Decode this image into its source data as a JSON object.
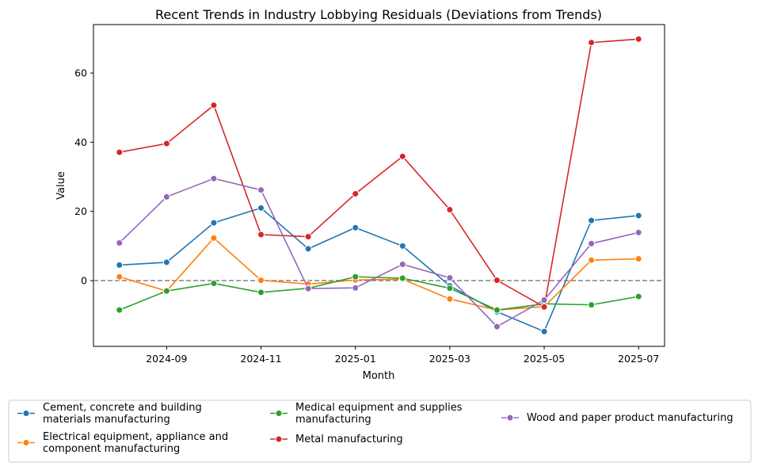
{
  "chart_data": {
    "type": "line",
    "title": "Recent Trends in Industry Lobbying Residuals (Deviations from Trends)",
    "xlabel": "Month",
    "ylabel": "Value",
    "x": [
      "2024-08",
      "2024-09",
      "2024-10",
      "2024-11",
      "2024-12",
      "2025-01",
      "2025-02",
      "2025-03",
      "2025-04",
      "2025-05",
      "2025-06",
      "2025-07"
    ],
    "x_ticks": [
      "2024-09",
      "2024-11",
      "2025-01",
      "2025-03",
      "2025-05",
      "2025-07"
    ],
    "y_ticks": [
      0,
      20,
      40,
      60
    ],
    "ylim": [
      -19,
      74
    ],
    "reference_line": {
      "y": 0,
      "style": "dashed",
      "color": "#808080"
    },
    "grid": false,
    "legend_position": "bottom",
    "series": [
      {
        "name_lines": [
          "Cement, concrete and building",
          "materials manufacturing"
        ],
        "color": "#1f77b4",
        "values": [
          4.5,
          5.3,
          16.7,
          21.0,
          9.2,
          15.3,
          10.0,
          -1.5,
          -9.0,
          -14.7,
          17.4,
          18.8
        ]
      },
      {
        "name_lines": [
          "Electrical equipment, appliance and",
          "component manufacturing"
        ],
        "color": "#ff7f0e",
        "values": [
          1.1,
          -3.0,
          12.3,
          0.1,
          -1.0,
          0.2,
          0.4,
          -5.3,
          -8.5,
          -7.5,
          5.9,
          6.3
        ]
      },
      {
        "name_lines": [
          "Medical equipment and supplies",
          "manufacturing"
        ],
        "color": "#2ca02c",
        "values": [
          -8.5,
          -3.0,
          -0.8,
          -3.4,
          -2.2,
          1.1,
          0.7,
          -2.2,
          -8.5,
          -6.7,
          -7.0,
          -4.6
        ]
      },
      {
        "name_lines": [
          "Metal manufacturing"
        ],
        "color": "#d62728",
        "values": [
          37.1,
          39.6,
          50.7,
          13.3,
          12.7,
          25.1,
          35.9,
          20.5,
          0.1,
          -7.6,
          68.8,
          69.8
        ]
      },
      {
        "name_lines": [
          "Wood and paper product manufacturing"
        ],
        "color": "#9467bd",
        "values": [
          10.9,
          24.2,
          29.5,
          26.2,
          -2.3,
          -2.1,
          4.7,
          0.8,
          -13.3,
          -5.6,
          10.7,
          13.9
        ]
      }
    ]
  }
}
